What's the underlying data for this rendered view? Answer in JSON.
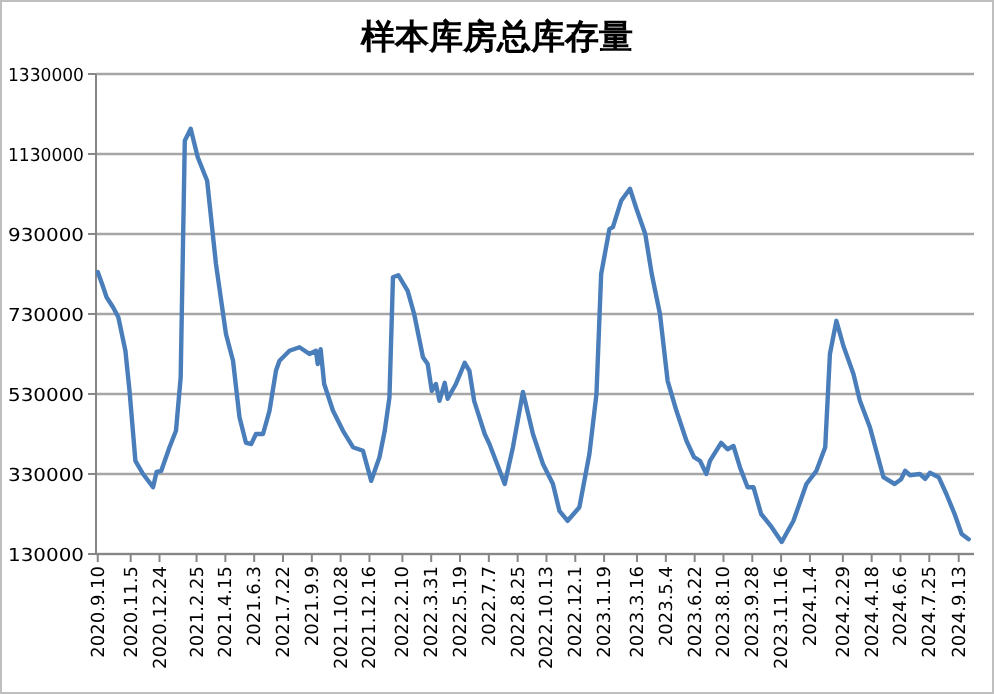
{
  "chart_data": {
    "type": "line",
    "title": "样本库房总库存量",
    "x": [
      "2020-09-10",
      "2020-09-19",
      "2020-09-25",
      "2020-10-06",
      "2020-10-15",
      "2020-10-27",
      "2020-11-03",
      "2020-11-13",
      "2020-11-26",
      "2020-12-13",
      "2020-12-19",
      "2020-12-27",
      "2021-01-10",
      "2021-01-21",
      "2021-01-29",
      "2021-02-05",
      "2021-02-15",
      "2021-02-27",
      "2021-03-15",
      "2021-03-30",
      "2021-04-16",
      "2021-04-28",
      "2021-05-09",
      "2021-05-20",
      "2021-05-29",
      "2021-06-06",
      "2021-06-18",
      "2021-06-29",
      "2021-07-10",
      "2021-07-16",
      "2021-08-02",
      "2021-08-19",
      "2021-09-05",
      "2021-09-16",
      "2021-09-19",
      "2021-09-24",
      "2021-09-30",
      "2021-10-15",
      "2021-11-01",
      "2021-11-18",
      "2021-12-05",
      "2021-12-19",
      "2022-01-02",
      "2022-01-11",
      "2022-01-19",
      "2022-01-25",
      "2022-02-03",
      "2022-02-19",
      "2022-03-02",
      "2022-03-17",
      "2022-03-25",
      "2022-04-01",
      "2022-04-08",
      "2022-04-14",
      "2022-04-23",
      "2022-04-28",
      "2022-05-12",
      "2022-05-27",
      "2022-06-04",
      "2022-06-12",
      "2022-06-30",
      "2022-07-08",
      "2022-08-03",
      "2022-08-17",
      "2022-09-03",
      "2022-09-20",
      "2022-10-07",
      "2022-10-24",
      "2022-11-04",
      "2022-11-18",
      "2022-12-08",
      "2022-12-25",
      "2023-01-06",
      "2023-01-14",
      "2023-01-28",
      "2023-02-03",
      "2023-02-17",
      "2023-03-04",
      "2023-03-15",
      "2023-03-30",
      "2023-04-10",
      "2023-04-24",
      "2023-05-07",
      "2023-05-22",
      "2023-06-08",
      "2023-06-21",
      "2023-07-01",
      "2023-07-12",
      "2023-07-18",
      "2023-08-06",
      "2023-08-17",
      "2023-08-27",
      "2023-09-07",
      "2023-09-20",
      "2023-09-30",
      "2023-10-13",
      "2023-10-31",
      "2023-11-17",
      "2023-12-07",
      "2023-12-29",
      "2024-01-15",
      "2024-01-30",
      "2024-02-07",
      "2024-02-18",
      "2024-03-01",
      "2024-03-18",
      "2024-03-29",
      "2024-04-15",
      "2024-05-08",
      "2024-05-27",
      "2024-06-07",
      "2024-06-14",
      "2024-06-22",
      "2024-07-09",
      "2024-07-18",
      "2024-07-26",
      "2024-08-10",
      "2024-08-23",
      "2024-09-06",
      "2024-09-18",
      "2024-09-30"
    ],
    "series": [
      {
        "color": "#4a7ebb",
        "values": [
          835000,
          798000,
          772000,
          747000,
          722000,
          638000,
          538000,
          363000,
          330000,
          297000,
          335000,
          338000,
          397000,
          438000,
          572000,
          1163000,
          1193000,
          1122000,
          1063000,
          855000,
          680000,
          613000,
          472000,
          408000,
          405000,
          430000,
          430000,
          488000,
          588000,
          613000,
          638000,
          647000,
          630000,
          638000,
          605000,
          642000,
          555000,
          488000,
          438000,
          397000,
          388000,
          313000,
          372000,
          438000,
          522000,
          822000,
          827000,
          788000,
          730000,
          622000,
          605000,
          538000,
          555000,
          513000,
          558000,
          518000,
          555000,
          608000,
          588000,
          513000,
          430000,
          405000,
          305000,
          397000,
          535000,
          430000,
          355000,
          305000,
          238000,
          213000,
          247000,
          380000,
          530000,
          830000,
          942000,
          947000,
          1013000,
          1043000,
          993000,
          930000,
          830000,
          730000,
          563000,
          488000,
          413000,
          372000,
          363000,
          330000,
          363000,
          408000,
          392000,
          400000,
          347000,
          297000,
          297000,
          230000,
          197000,
          160000,
          213000,
          305000,
          338000,
          397000,
          630000,
          713000,
          650000,
          580000,
          513000,
          447000,
          322000,
          305000,
          317000,
          338000,
          327000,
          330000,
          318000,
          333000,
          322000,
          280000,
          230000,
          180000,
          167000
        ]
      }
    ],
    "xlim": [
      "2020-09-07",
      "2024-10-09"
    ],
    "xticks": [
      {
        "value": "2020-09-10",
        "label": "2020.9.10"
      },
      {
        "value": "2020-11-05",
        "label": "2020.11.5"
      },
      {
        "value": "2020-12-24",
        "label": "2020.12.24"
      },
      {
        "value": "2021-02-25",
        "label": "2021.2.25"
      },
      {
        "value": "2021-04-15",
        "label": "2021.4.15"
      },
      {
        "value": "2021-06-03",
        "label": "2021.6.3"
      },
      {
        "value": "2021-07-22",
        "label": "2021.7.22"
      },
      {
        "value": "2021-09-09",
        "label": "2021.9.9"
      },
      {
        "value": "2021-10-28",
        "label": "2021.10.28"
      },
      {
        "value": "2021-12-16",
        "label": "2021.12.16"
      },
      {
        "value": "2022-02-10",
        "label": "2022.2.10"
      },
      {
        "value": "2022-03-31",
        "label": "2022.3.31"
      },
      {
        "value": "2022-05-19",
        "label": "2022.5.19"
      },
      {
        "value": "2022-07-07",
        "label": "2022.7.7"
      },
      {
        "value": "2022-08-25",
        "label": "2022.8.25"
      },
      {
        "value": "2022-10-13",
        "label": "2022.10.13"
      },
      {
        "value": "2022-12-01",
        "label": "2022.12.1"
      },
      {
        "value": "2023-01-19",
        "label": "2023.1.19"
      },
      {
        "value": "2023-03-16",
        "label": "2023.3.16"
      },
      {
        "value": "2023-05-04",
        "label": "2023.5.4"
      },
      {
        "value": "2023-06-22",
        "label": "2023.6.22"
      },
      {
        "value": "2023-08-10",
        "label": "2023.8.10"
      },
      {
        "value": "2023-09-28",
        "label": "2023.9.28"
      },
      {
        "value": "2023-11-16",
        "label": "2023.11.16"
      },
      {
        "value": "2024-01-04",
        "label": "2024.1.4"
      },
      {
        "value": "2024-02-29",
        "label": "2024.2.29"
      },
      {
        "value": "2024-04-18",
        "label": "2024.4.18"
      },
      {
        "value": "2024-06-06",
        "label": "2024.6.6"
      },
      {
        "value": "2024-07-25",
        "label": "2024.7.25"
      },
      {
        "value": "2024-09-13",
        "label": "2024.9.13"
      }
    ],
    "ylim": [
      130000,
      1330000
    ],
    "yticks": [
      130000,
      330000,
      530000,
      730000,
      930000,
      1130000,
      1330000
    ],
    "grid": "y",
    "marker": "none",
    "line_style": "solid"
  }
}
